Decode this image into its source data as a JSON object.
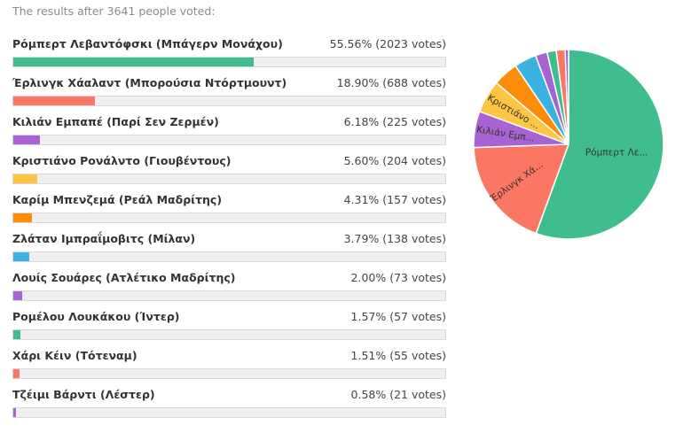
{
  "summary": "The results after 3641 people voted:",
  "chart_data": {
    "type": "bar",
    "total_votes": 3641,
    "categories": [
      "Ρόμπερτ Λεβαντόφσκι (Μπάγερν Μονάχου)",
      "Έρλινγκ Χάαλαντ (Μπορούσια Ντόρτμουντ)",
      "Κιλιάν Εμπαπέ (Παρί Σεν Ζερμέν)",
      "Κριστιάνο Ρονάλντο (Γιουβέντους)",
      "Καρίμ Μπενζεμά (Ρεάλ Μαδρίτης)",
      "Ζλάταν Ιμπραΐμοβιτς (Μίλαν)",
      "Λουίς Σουάρες (Ατλέτικο Μαδρίτης)",
      "Ρομέλου Λουκάκου (Ίντερ)",
      "Χάρι Κέιν (Τότεναμ)",
      "Τζέιμι Βάρντι (Λέστερ)"
    ],
    "percents": [
      55.56,
      18.9,
      6.18,
      5.6,
      4.31,
      3.79,
      2.0,
      1.57,
      1.51,
      0.58
    ],
    "votes": [
      2023,
      688,
      225,
      204,
      157,
      138,
      73,
      57,
      55,
      21
    ],
    "result_labels": [
      "55.56% (2023 votes)",
      "18.90% (688 votes)",
      "6.18% (225 votes)",
      "5.60% (204 votes)",
      "4.31% (157 votes)",
      "3.79% (138 votes)",
      "2.00% (73 votes)",
      "1.57% (57 votes)",
      "1.51% (55 votes)",
      "0.58% (21 votes)"
    ],
    "colors": [
      "#40bd8f",
      "#fb7663",
      "#a763d1",
      "#fdc541",
      "#fd8c08",
      "#3cb2e3",
      "#a763d1",
      "#40bd8f",
      "#fb7663",
      "#a763d1"
    ],
    "pie_labels": [
      "Ρόμπερτ Λε...",
      "Έρλινγκ Χά...",
      "Κιλιάν Εμπ...",
      "Κριστιάνο ..."
    ]
  }
}
